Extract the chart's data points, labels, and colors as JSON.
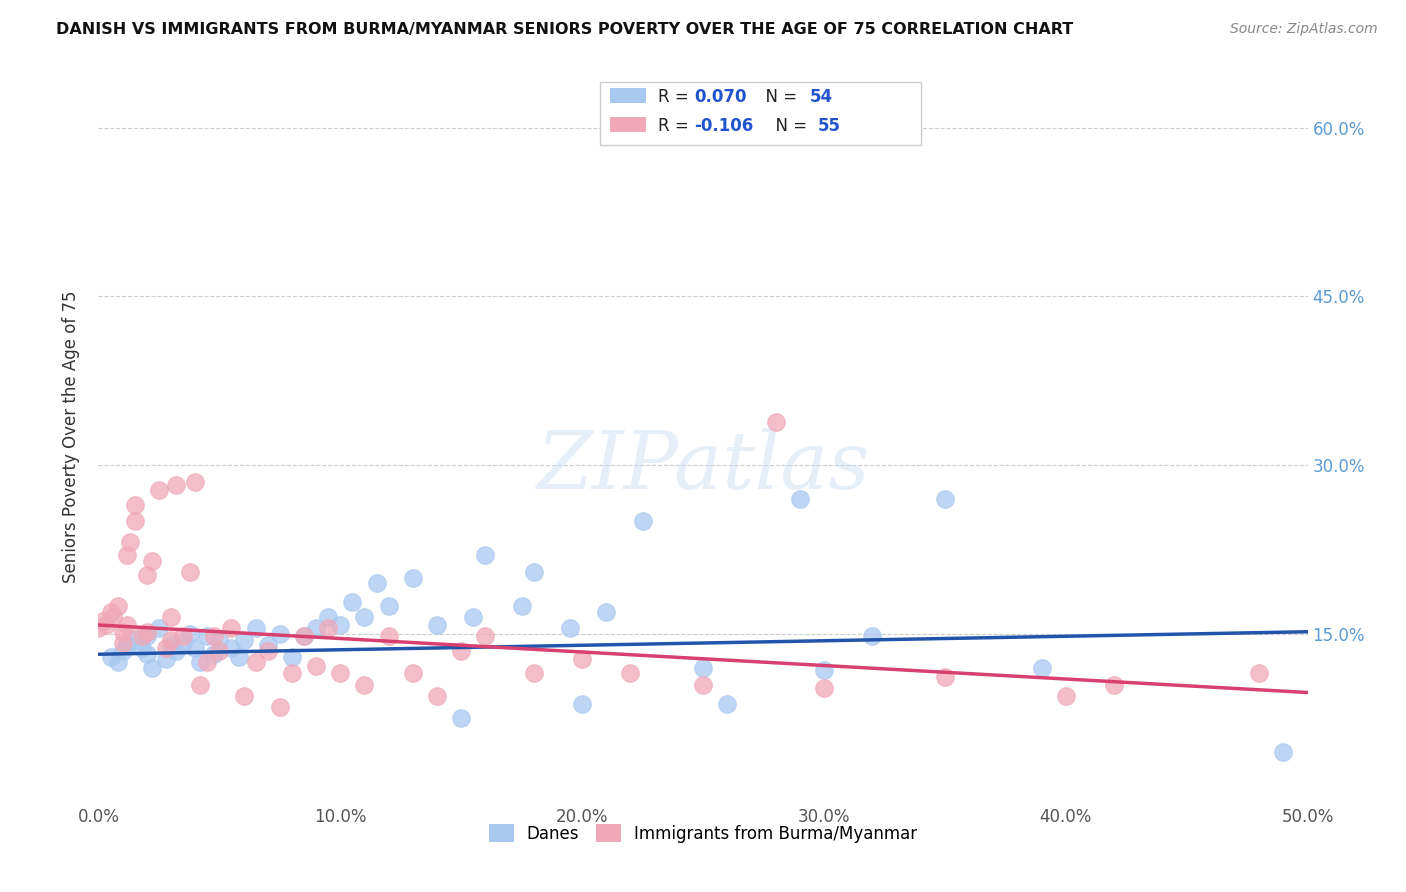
{
  "title": "DANISH VS IMMIGRANTS FROM BURMA/MYANMAR SENIORS POVERTY OVER THE AGE OF 75 CORRELATION CHART",
  "source": "Source: ZipAtlas.com",
  "ylabel": "Seniors Poverty Over the Age of 75",
  "xlim": [
    0,
    0.5
  ],
  "ylim": [
    0,
    0.65
  ],
  "xticks": [
    0.0,
    0.1,
    0.2,
    0.3,
    0.4,
    0.5
  ],
  "yticks_left": [
    0.15,
    0.3,
    0.45,
    0.6
  ],
  "yticks_right": [
    0.15,
    0.3,
    0.45,
    0.6
  ],
  "right_ytick_labels": [
    "15.0%",
    "30.0%",
    "45.0%",
    "60.0%"
  ],
  "xtick_labels": [
    "0.0%",
    "10.0%",
    "20.0%",
    "30.0%",
    "40.0%",
    "50.0%"
  ],
  "color_blue": "#a8c8f0",
  "color_pink": "#f0a8b8",
  "line_blue": "#2255aa",
  "line_pink": "#d84070",
  "watermark": "ZIPatlas",
  "danes_scatter_x": [
    0.005,
    0.008,
    0.01,
    0.012,
    0.015,
    0.018,
    0.02,
    0.02,
    0.022,
    0.025,
    0.028,
    0.03,
    0.032,
    0.035,
    0.038,
    0.04,
    0.042,
    0.045,
    0.048,
    0.05,
    0.055,
    0.058,
    0.06,
    0.065,
    0.07,
    0.075,
    0.08,
    0.085,
    0.09,
    0.095,
    0.1,
    0.105,
    0.11,
    0.115,
    0.12,
    0.13,
    0.14,
    0.15,
    0.155,
    0.16,
    0.175,
    0.18,
    0.195,
    0.2,
    0.21,
    0.225,
    0.25,
    0.26,
    0.29,
    0.3,
    0.32,
    0.35,
    0.39,
    0.49
  ],
  "danes_scatter_y": [
    0.13,
    0.125,
    0.135,
    0.14,
    0.145,
    0.138,
    0.132,
    0.148,
    0.12,
    0.155,
    0.128,
    0.14,
    0.135,
    0.142,
    0.15,
    0.138,
    0.125,
    0.148,
    0.132,
    0.145,
    0.138,
    0.13,
    0.145,
    0.155,
    0.14,
    0.15,
    0.13,
    0.148,
    0.155,
    0.165,
    0.158,
    0.178,
    0.165,
    0.195,
    0.175,
    0.2,
    0.158,
    0.075,
    0.165,
    0.22,
    0.175,
    0.205,
    0.155,
    0.088,
    0.17,
    0.25,
    0.12,
    0.088,
    0.27,
    0.118,
    0.148,
    0.27,
    0.12,
    0.045
  ],
  "burma_scatter_x": [
    0.0,
    0.002,
    0.003,
    0.005,
    0.006,
    0.008,
    0.01,
    0.01,
    0.012,
    0.012,
    0.013,
    0.015,
    0.015,
    0.018,
    0.02,
    0.02,
    0.022,
    0.025,
    0.028,
    0.03,
    0.03,
    0.032,
    0.035,
    0.038,
    0.04,
    0.042,
    0.045,
    0.048,
    0.05,
    0.055,
    0.06,
    0.065,
    0.07,
    0.075,
    0.08,
    0.085,
    0.09,
    0.095,
    0.1,
    0.11,
    0.12,
    0.13,
    0.14,
    0.15,
    0.16,
    0.18,
    0.2,
    0.22,
    0.25,
    0.28,
    0.3,
    0.35,
    0.4,
    0.42,
    0.48
  ],
  "burma_scatter_y": [
    0.155,
    0.162,
    0.158,
    0.17,
    0.165,
    0.175,
    0.142,
    0.152,
    0.158,
    0.22,
    0.232,
    0.25,
    0.265,
    0.148,
    0.152,
    0.202,
    0.215,
    0.278,
    0.138,
    0.145,
    0.165,
    0.282,
    0.148,
    0.205,
    0.285,
    0.105,
    0.125,
    0.148,
    0.135,
    0.155,
    0.095,
    0.125,
    0.135,
    0.085,
    0.115,
    0.148,
    0.122,
    0.155,
    0.115,
    0.105,
    0.148,
    0.115,
    0.095,
    0.135,
    0.148,
    0.115,
    0.128,
    0.115,
    0.105,
    0.338,
    0.102,
    0.112,
    0.095,
    0.105,
    0.115
  ],
  "danes_blue_line_x": [
    0.0,
    0.5
  ],
  "danes_blue_line_y": [
    0.132,
    0.152
  ],
  "burma_pink_line_x": [
    0.0,
    0.5
  ],
  "burma_pink_line_y": [
    0.158,
    0.098
  ]
}
